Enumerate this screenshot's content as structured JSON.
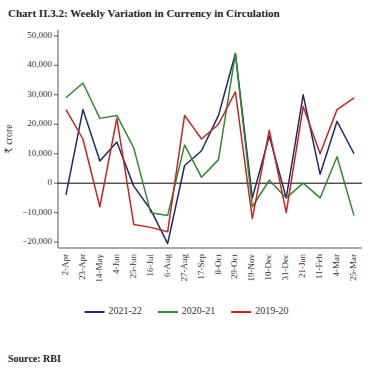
{
  "chart_data": {
    "type": "line",
    "title": "Chart II.3.2: Weekly Variation in Currency in Circulation",
    "ylabel": "₹ crore",
    "source": "Source: RBI",
    "categories": [
      "2-Apr",
      "23-Apr",
      "14-May",
      "4-Jun",
      "25-Jun",
      "16-Jul",
      "6-Aug",
      "27-Aug",
      "17-Sep",
      "8-Oct",
      "29-Oct",
      "19-Nov",
      "10-Dec",
      "31-Dec",
      "21-Jan",
      "11-Feb",
      "4-Mar",
      "25-Mar"
    ],
    "series": [
      {
        "name": "2021-22",
        "color": "#1f2a6e",
        "values": [
          -4000,
          25000,
          7500,
          14000,
          -1000,
          -9000,
          -20500,
          6000,
          11000,
          23000,
          44000,
          -5000,
          16000,
          -5000,
          30000,
          3000,
          21000,
          10000
        ]
      },
      {
        "name": "2020-21",
        "color": "#2d8c2d",
        "values": [
          29000,
          34000,
          22000,
          23000,
          12000,
          -10000,
          -11000,
          13000,
          2000,
          8000,
          44000,
          -8000,
          1000,
          -5000,
          0,
          -5000,
          9000,
          -11000
        ]
      },
      {
        "name": "2019-20",
        "color": "#cc2222",
        "values": [
          25000,
          15000,
          -8000,
          22000,
          -14000,
          -15000,
          -16500,
          23000,
          15000,
          20000,
          31000,
          -12000,
          18000,
          -10000,
          26000,
          10000,
          25000,
          29000
        ]
      }
    ],
    "ylim": [
      -22000,
      52000
    ],
    "yticks": [
      {
        "value": -20000,
        "label": "−20,000"
      },
      {
        "value": -10000,
        "label": "−10,000"
      },
      0,
      {
        "value": 10000,
        "label": "10,000"
      },
      {
        "value": 20000,
        "label": "20,000"
      },
      {
        "value": 30000,
        "label": "30,000"
      },
      {
        "value": 40000,
        "label": "40,000"
      },
      {
        "value": 50000,
        "label": "50,000"
      }
    ],
    "grid": false,
    "legend": "bottom"
  }
}
